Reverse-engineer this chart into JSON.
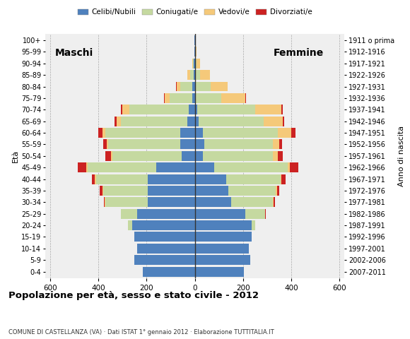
{
  "age_groups": [
    "0-4",
    "5-9",
    "10-14",
    "15-19",
    "20-24",
    "25-29",
    "30-34",
    "35-39",
    "40-44",
    "45-49",
    "50-54",
    "55-59",
    "60-64",
    "65-69",
    "70-74",
    "75-79",
    "80-84",
    "85-89",
    "90-94",
    "95-99",
    "100+"
  ],
  "birth_years": [
    "2007-2011",
    "2002-2006",
    "1997-2001",
    "1992-1996",
    "1987-1991",
    "1982-1986",
    "1977-1981",
    "1972-1976",
    "1967-1971",
    "1962-1966",
    "1957-1961",
    "1952-1956",
    "1947-1951",
    "1942-1946",
    "1937-1941",
    "1932-1936",
    "1927-1931",
    "1922-1926",
    "1917-1921",
    "1912-1916",
    "1911 o prima"
  ],
  "colors": {
    "celibe": "#4f81bd",
    "coniugato": "#c5d9a0",
    "vedovo": "#f5c97a",
    "divorziato": "#cc2222"
  },
  "males": {
    "celibe": [
      215,
      250,
      240,
      250,
      260,
      240,
      195,
      195,
      195,
      160,
      55,
      60,
      60,
      30,
      25,
      10,
      10,
      5,
      4,
      2,
      2
    ],
    "coniugato": [
      0,
      0,
      0,
      0,
      18,
      65,
      175,
      185,
      215,
      285,
      285,
      300,
      310,
      275,
      245,
      95,
      50,
      15,
      3,
      0,
      0
    ],
    "vedovo": [
      0,
      0,
      0,
      0,
      0,
      0,
      2,
      2,
      3,
      5,
      8,
      5,
      12,
      20,
      30,
      20,
      15,
      10,
      4,
      0,
      0
    ],
    "divorziato": [
      0,
      0,
      0,
      0,
      0,
      0,
      5,
      12,
      12,
      35,
      22,
      15,
      18,
      8,
      5,
      3,
      2,
      0,
      0,
      0,
      0
    ]
  },
  "females": {
    "celibe": [
      205,
      230,
      225,
      235,
      235,
      210,
      150,
      140,
      130,
      80,
      35,
      40,
      35,
      15,
      10,
      5,
      5,
      2,
      2,
      1,
      0
    ],
    "coniugato": [
      0,
      0,
      0,
      0,
      15,
      80,
      175,
      195,
      225,
      305,
      290,
      285,
      310,
      270,
      240,
      105,
      60,
      20,
      5,
      0,
      0
    ],
    "vedovo": [
      0,
      0,
      0,
      0,
      0,
      2,
      2,
      5,
      5,
      10,
      18,
      25,
      55,
      80,
      110,
      100,
      70,
      40,
      15,
      5,
      2
    ],
    "divorziato": [
      0,
      0,
      0,
      0,
      0,
      2,
      5,
      10,
      15,
      35,
      22,
      12,
      18,
      5,
      5,
      2,
      2,
      0,
      0,
      0,
      0
    ]
  },
  "xlim": 620,
  "title": "Popolazione per età, sesso e stato civile - 2012",
  "subtitle": "COMUNE DI CASTELLANZA (VA) · Dati ISTAT 1° gennaio 2012 · Elaborazione TUTTITALIA.IT",
  "label_left": "Maschi",
  "label_right": "Femmine",
  "ylabel": "Età",
  "ylabel_right": "Anno di nascita",
  "legend_labels": [
    "Celibi/Nubili",
    "Coniugati/e",
    "Vedovi/e",
    "Divorziati/e"
  ],
  "background_color": "#ffffff",
  "plot_bg_color": "#efefef"
}
